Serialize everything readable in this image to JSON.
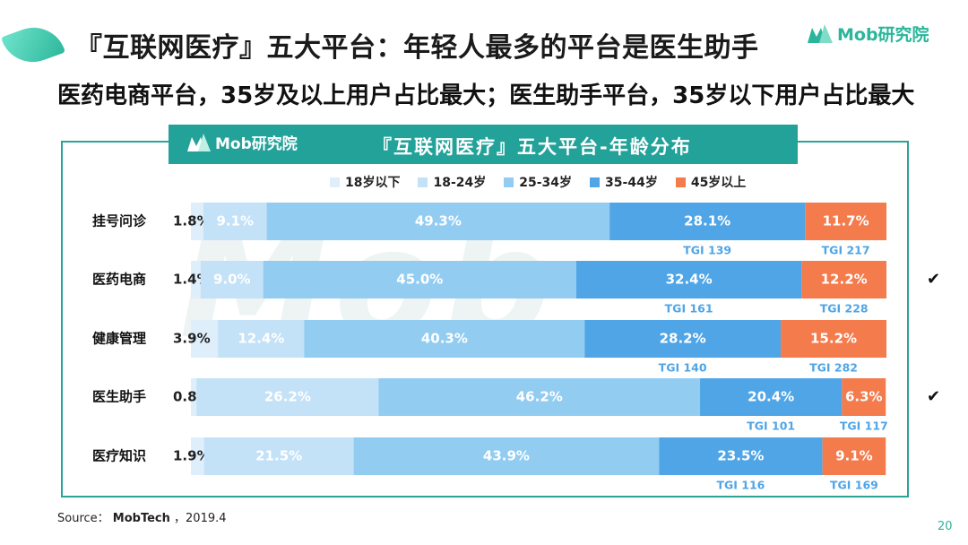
{
  "slide": {
    "title": "『互联网医疗』五大平台：年轻人最多的平台是医生助手",
    "subtitle": "医药电商平台，35岁及以上用户占比最大；医生助手平台，35岁以下用户占比最大",
    "brand": "Mob研究院",
    "watermark": "Mob",
    "source_label": "Source：",
    "source_value": "MobTech",
    "source_date": "，2019.4",
    "page_number": "20"
  },
  "chart_data": {
    "type": "bar",
    "orientation": "horizontal",
    "stacked": true,
    "percent_stacked": true,
    "title": "『互联网医疗』五大平台-年龄分布",
    "brand": "Mob研究院",
    "categories": [
      "挂号问诊",
      "医药电商",
      "健康管理",
      "医生助手",
      "医疗知识"
    ],
    "series": [
      {
        "name": "18岁以下",
        "color": "#deeefa",
        "label_color": "#222222",
        "values": [
          1.8,
          1.4,
          3.9,
          0.8,
          1.9
        ]
      },
      {
        "name": "18-24岁",
        "color": "#c3e1f7",
        "label_color": "#ffffff",
        "values": [
          9.1,
          9.0,
          12.4,
          26.2,
          21.5
        ]
      },
      {
        "name": "25-34岁",
        "color": "#92ccf1",
        "label_color": "#ffffff",
        "values": [
          49.3,
          45.0,
          40.3,
          46.2,
          43.9
        ]
      },
      {
        "name": "35-44岁",
        "color": "#4fa5e6",
        "label_color": "#ffffff",
        "values": [
          28.1,
          32.4,
          28.2,
          20.4,
          23.5
        ]
      },
      {
        "name": "45岁以上",
        "color": "#f47b4c",
        "label_color": "#ffffff",
        "values": [
          11.7,
          12.2,
          15.2,
          6.3,
          9.1
        ]
      }
    ],
    "value_labels": [
      [
        "1.8%",
        "9.1%",
        "49.3%",
        "28.1%",
        "11.7%"
      ],
      [
        "1.4%",
        "9.0%",
        "45.0%",
        "32.4%",
        "12.2%"
      ],
      [
        "3.9%",
        "12.4%",
        "40.3%",
        "28.2%",
        "15.2%"
      ],
      [
        "0.8%",
        "26.2%",
        "46.2%",
        "20.4%",
        "6.3%"
      ],
      [
        "1.9%",
        "21.5%",
        "43.9%",
        "23.5%",
        "9.1%"
      ]
    ],
    "tgi_labels": {
      "35-44岁": [
        "TGI 139",
        "TGI 161",
        "TGI 140",
        "TGI 101",
        "TGI 116"
      ],
      "45岁以上": [
        "TGI 217",
        "TGI 228",
        "TGI 282",
        "TGI 117",
        "TGI 169"
      ]
    },
    "tgi_color": "#4fa5e6",
    "checkmarks": [
      false,
      true,
      false,
      true,
      false
    ],
    "checkmark_symbol": "✔",
    "legend_position": "top",
    "grid": false,
    "xlim": [
      0,
      100
    ]
  },
  "colors": {
    "accent": "#23a29a",
    "brand_green": "#2bb69b",
    "frame": "#2aa498"
  }
}
